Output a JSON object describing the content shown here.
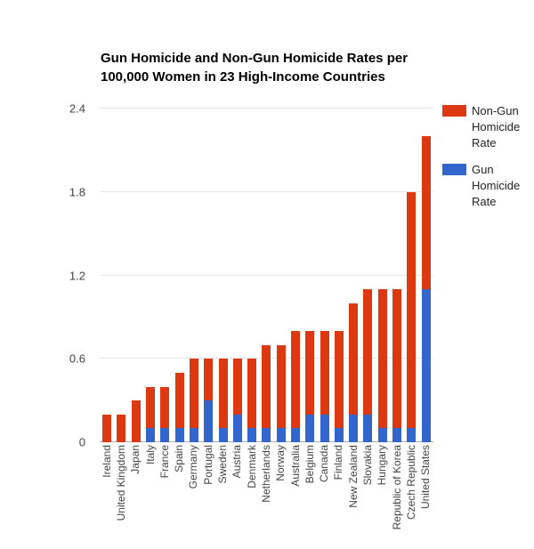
{
  "chart_data": {
    "type": "bar",
    "stacked": true,
    "title": "Gun Homicide and Non-Gun Homicide Rates per 100,000 Women in 23 High-Income Countries",
    "categories": [
      "Ireland",
      "United Kingdom",
      "Japan",
      "Italy",
      "France",
      "Spain",
      "Germany",
      "Portugal",
      "Sweden",
      "Austria",
      "Denmark",
      "Netherlands",
      "Norway",
      "Australia",
      "Belgium",
      "Canada",
      "Finland",
      "New Zealand",
      "Slovakia",
      "Hungary",
      "Republic of Korea",
      "Czech Republic",
      "United States"
    ],
    "series": [
      {
        "name": "Non-Gun Homicide Rate",
        "color": "#dc3912",
        "stack_position": "top",
        "values": [
          0.2,
          0.2,
          0.3,
          0.3,
          0.3,
          0.4,
          0.5,
          0.3,
          0.5,
          0.4,
          0.5,
          0.6,
          0.6,
          0.7,
          0.6,
          0.6,
          0.7,
          0.8,
          0.9,
          1.0,
          1.0,
          1.7,
          1.1
        ]
      },
      {
        "name": "Gun Homicide Rate",
        "color": "#3366cc",
        "stack_position": "bottom",
        "values": [
          0,
          0,
          0,
          0.1,
          0.1,
          0.1,
          0.1,
          0.3,
          0.1,
          0.2,
          0.1,
          0.1,
          0.1,
          0.1,
          0.2,
          0.2,
          0.1,
          0.2,
          0.2,
          0.1,
          0.1,
          0.1,
          1.1
        ]
      }
    ],
    "ylim": [
      0,
      2.4
    ],
    "yticks": [
      "0",
      "0.6",
      "1.2",
      "1.8",
      "2.4"
    ],
    "grid": true,
    "legend_position": "right",
    "axis_text_color": "#444444",
    "gridline_color": "#e6e6e6"
  }
}
